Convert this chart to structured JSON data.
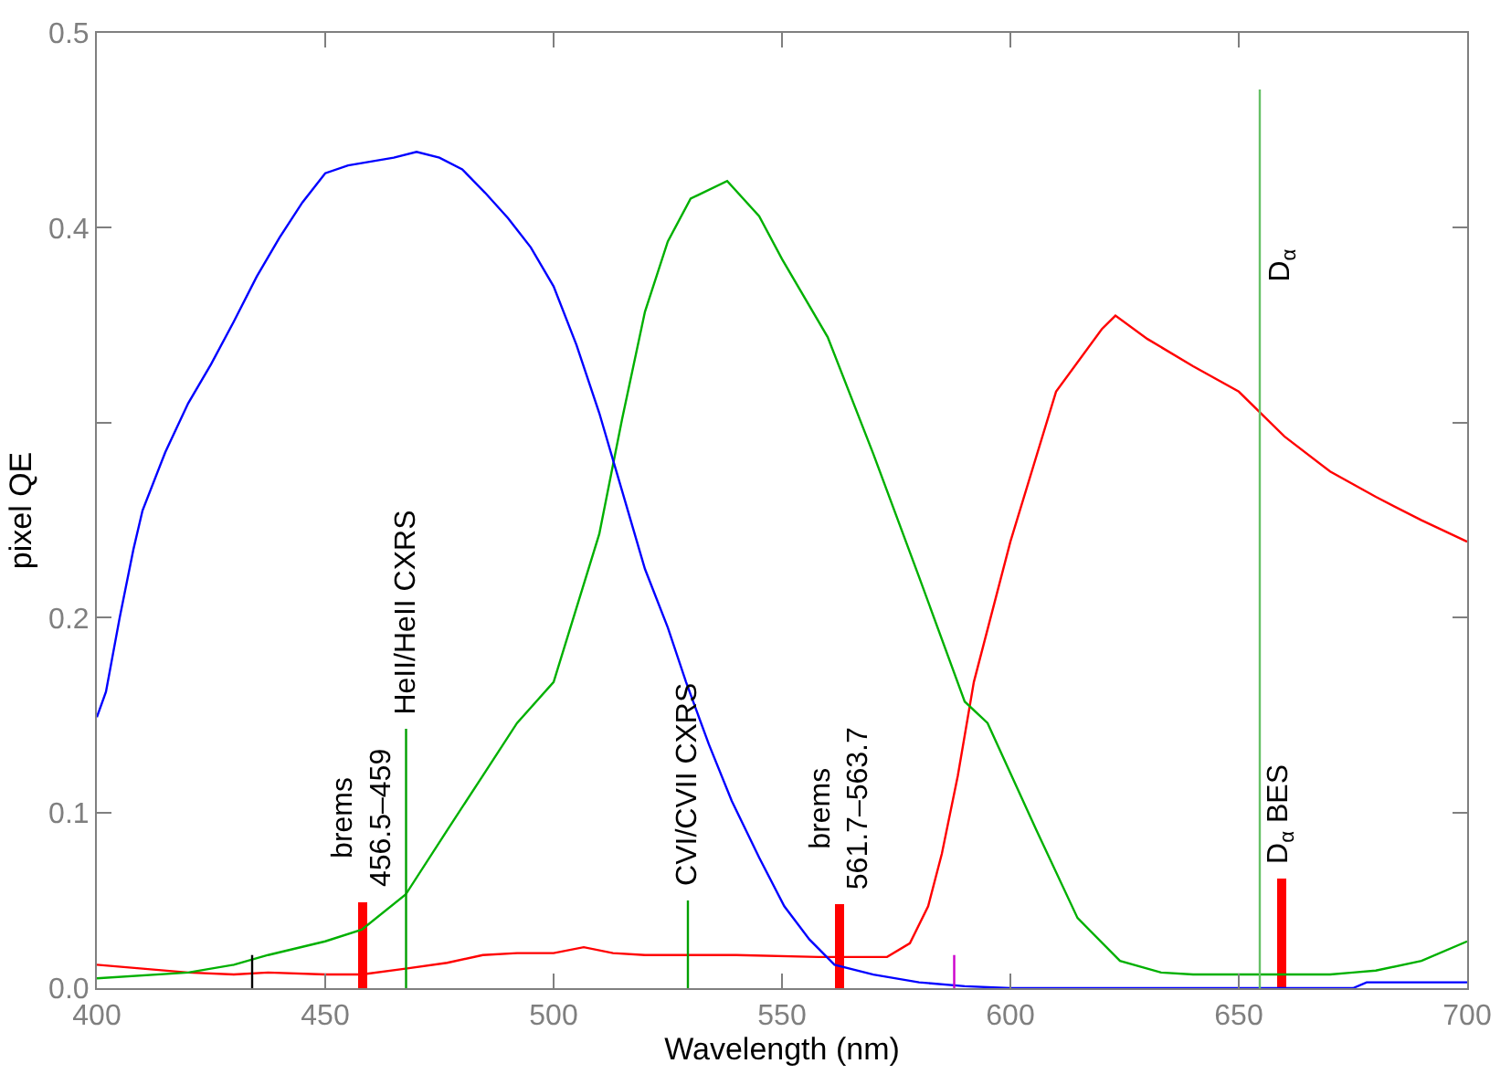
{
  "chart_data": {
    "type": "line",
    "xlabel": "Wavelength (nm)",
    "ylabel": "pixel QE",
    "xlim": [
      400,
      700
    ],
    "xticks": [
      400,
      450,
      500,
      550,
      600,
      650,
      700
    ],
    "ylim": [
      0.01,
      0.5
    ],
    "yticks": [
      {
        "value": 0.01,
        "label": "0.0"
      },
      0.1,
      0.2,
      {
        "value": 0.3,
        "label": null
      },
      0.4,
      0.5
    ],
    "line_style": "solid",
    "series": [
      {
        "color": "#ff0000",
        "x": [
          400,
          410,
          420,
          430,
          437.5,
          450,
          458,
          467.6,
          476.7,
          484.5,
          492,
          500,
          506.6,
          513,
          520,
          540,
          558,
          573,
          578,
          582,
          585,
          588.5,
          592,
          600,
          610,
          620,
          623,
          630,
          640,
          650,
          660,
          670,
          680,
          690,
          700
        ],
        "values": [
          0.022,
          0.02,
          0.018,
          0.017,
          0.018,
          0.017,
          0.017,
          0.02,
          0.023,
          0.027,
          0.028,
          0.028,
          0.031,
          0.028,
          0.027,
          0.027,
          0.026,
          0.026,
          0.033,
          0.052,
          0.079,
          0.119,
          0.167,
          0.239,
          0.316,
          0.348,
          0.355,
          0.343,
          0.329,
          0.316,
          0.293,
          0.275,
          0.262,
          0.25,
          0.239
        ]
      },
      {
        "color": "#00b000",
        "x": [
          400,
          420,
          430,
          437.5,
          450,
          458,
          467.6,
          476.7,
          484.5,
          492,
          500,
          510,
          515,
          520,
          525,
          530,
          538,
          545,
          550,
          560,
          570,
          580,
          590,
          595,
          605.7,
          614.7,
          624,
          633,
          640,
          670,
          675,
          680,
          690,
          700
        ],
        "values": [
          0.015,
          0.018,
          0.022,
          0.027,
          0.034,
          0.04,
          0.058,
          0.091,
          0.119,
          0.146,
          0.167,
          0.243,
          0.302,
          0.357,
          0.393,
          0.415,
          0.424,
          0.406,
          0.384,
          0.344,
          0.284,
          0.221,
          0.157,
          0.146,
          0.091,
          0.046,
          0.024,
          0.018,
          0.017,
          0.017,
          0.018,
          0.019,
          0.024,
          0.034
        ]
      },
      {
        "color": "#0000ff",
        "x": [
          400,
          402,
          405,
          408,
          410,
          415,
          420,
          425,
          430,
          435,
          440,
          445,
          450,
          455,
          460,
          465,
          470,
          475,
          480,
          485,
          490,
          495,
          500,
          505,
          510,
          515,
          520,
          525,
          529,
          534,
          539,
          545,
          550.5,
          556,
          561.5,
          570,
          580,
          590,
          600,
          675,
          678,
          700
        ],
        "values": [
          0.149,
          0.162,
          0.2,
          0.235,
          0.255,
          0.285,
          0.31,
          0.33,
          0.352,
          0.375,
          0.395,
          0.413,
          0.428,
          0.432,
          0.434,
          0.436,
          0.439,
          0.436,
          0.43,
          0.418,
          0.405,
          0.39,
          0.37,
          0.34,
          0.305,
          0.265,
          0.225,
          0.195,
          0.167,
          0.135,
          0.106,
          0.077,
          0.052,
          0.035,
          0.022,
          0.017,
          0.013,
          0.011,
          0.01,
          0.01,
          0.013,
          0.013
        ]
      },
      {
        "color": "#000000",
        "x": [
          434,
          434
        ],
        "values": [
          0.01,
          0.027
        ]
      },
      {
        "color": "#cc00cc",
        "x": [
          587.7,
          587.7
        ],
        "values": [
          0.01,
          0.027
        ]
      },
      {
        "color": "#00a000",
        "x": [
          467.7,
          467.7
        ],
        "values": [
          0.01,
          0.143
        ]
      },
      {
        "color": "#00a000",
        "x": [
          529.4,
          529.4
        ],
        "values": [
          0.01,
          0.055
        ]
      },
      {
        "color": "#66c066",
        "x": [
          654.6,
          654.6
        ],
        "values": [
          0.01,
          0.471
        ]
      },
      {
        "type": "bar",
        "color": "#ff0000",
        "x": [
          458.2,
          562.6,
          659.3
        ],
        "values": [
          0.054,
          0.053,
          0.066
        ]
      }
    ],
    "annotations": [
      {
        "text": "brems\n456.5–459",
        "x": 458.2,
        "y": 0.054
      },
      {
        "text": "HeII/HeII CXRS",
        "x": 467.7,
        "y": 0.143
      },
      {
        "text": "CVI/CVII CXRS",
        "x": 529.4,
        "y": 0.055
      },
      {
        "text": "brems\n561.7–563.7",
        "x": 562.6,
        "y": 0.053
      },
      {
        "text": "D$_{α}$ BES",
        "x": 659.3,
        "y": 0.066
      },
      {
        "text": "D$_{α}$",
        "x": 654.6,
        "y": 0.37
      }
    ]
  }
}
